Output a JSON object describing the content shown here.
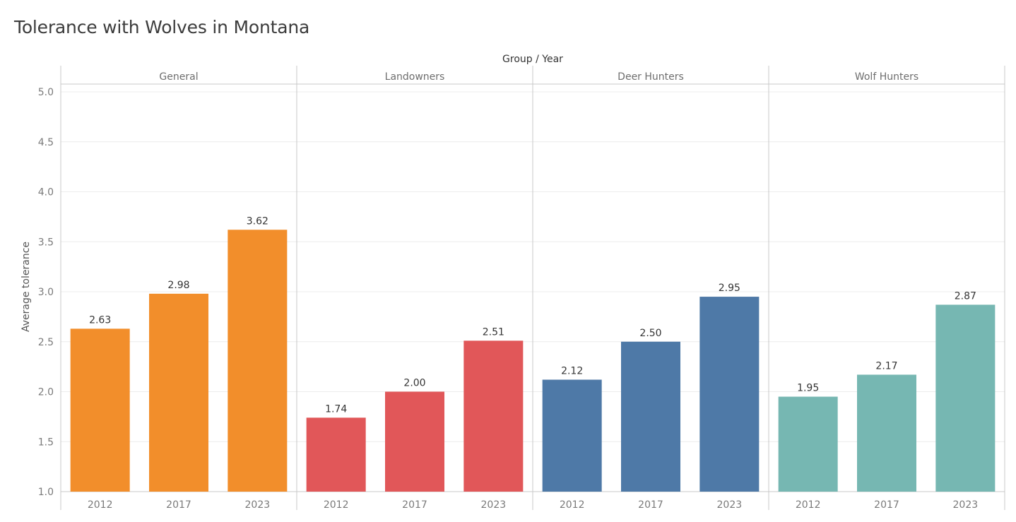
{
  "title": "Tolerance with Wolves in Montana",
  "chart_data": {
    "type": "bar",
    "title": "Tolerance with Wolves in Montana",
    "column_header": "Group / Year",
    "ylabel": "Average tolerance",
    "ylim": [
      1.0,
      5.0
    ],
    "yticks": [
      "1.0",
      "1.5",
      "2.0",
      "2.5",
      "3.0",
      "3.5",
      "4.0",
      "4.5",
      "5.0"
    ],
    "grid": true,
    "groups": [
      {
        "name": "General",
        "color": "#f28e2b",
        "categories": [
          "2012",
          "2017",
          "2023"
        ],
        "values": [
          2.63,
          2.98,
          3.62
        ],
        "labels": [
          "2.63",
          "2.98",
          "3.62"
        ]
      },
      {
        "name": "Landowners",
        "color": "#e15759",
        "categories": [
          "2012",
          "2017",
          "2023"
        ],
        "values": [
          1.74,
          2.0,
          2.51
        ],
        "labels": [
          "1.74",
          "2.00",
          "2.51"
        ]
      },
      {
        "name": "Deer Hunters",
        "color": "#4e79a7",
        "categories": [
          "2012",
          "2017",
          "2023"
        ],
        "values": [
          2.12,
          2.5,
          2.95
        ],
        "labels": [
          "2.12",
          "2.50",
          "2.95"
        ]
      },
      {
        "name": "Wolf Hunters",
        "color": "#76b7b2",
        "categories": [
          "2012",
          "2017",
          "2023"
        ],
        "values": [
          1.95,
          2.17,
          2.87
        ],
        "labels": [
          "1.95",
          "2.17",
          "2.87"
        ]
      }
    ]
  }
}
